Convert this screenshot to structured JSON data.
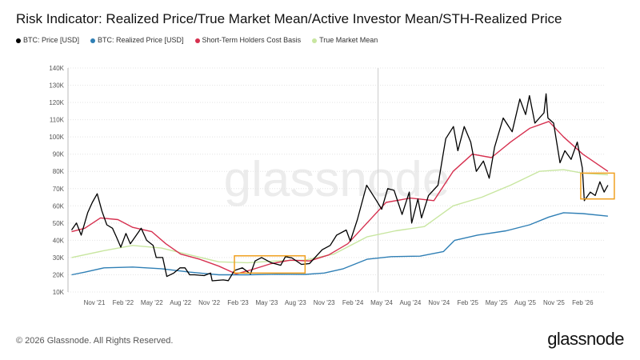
{
  "title": "Risk Indicator: Realized Price/True Market Mean/Active Investor Mean/STH-Realized Price",
  "footer": "© 2026 Glassnode. All Rights Reserved.",
  "brand": "glassnode",
  "watermark": "glassnode",
  "chart_data": {
    "type": "line",
    "title": "Risk Indicator: Realized Price/True Market Mean/Active Investor Mean/STH-Realized Price",
    "y_scale": "linear",
    "ylim": [
      10000,
      140000
    ],
    "y_ticks": [
      "10K",
      "20K",
      "30K",
      "40K",
      "50K",
      "60K",
      "70K",
      "80K",
      "90K",
      "100K",
      "110K",
      "120K",
      "130K",
      "140K"
    ],
    "x_ticks": [
      "Nov '21",
      "Feb '22",
      "May '22",
      "Aug '22",
      "Nov '22",
      "Feb '23",
      "May '23",
      "Aug '23",
      "Nov '23",
      "Feb '24",
      "May '24",
      "Aug '24",
      "Nov '24",
      "Feb '25",
      "May '25",
      "Aug '25",
      "Nov '25",
      "Feb '26"
    ],
    "grid": "horizontal dotted",
    "legend_placement": "top-left",
    "series": [
      {
        "name": "BTC: Price [USD]",
        "color": "#000000",
        "points": [
          [
            "2021-08-20",
            46000
          ],
          [
            "2021-09-05",
            50000
          ],
          [
            "2021-09-20",
            43000
          ],
          [
            "2021-10-10",
            56000
          ],
          [
            "2021-10-25",
            62000
          ],
          [
            "2021-11-10",
            67000
          ],
          [
            "2021-11-25",
            57000
          ],
          [
            "2021-12-10",
            49000
          ],
          [
            "2021-12-28",
            47000
          ],
          [
            "2022-01-10",
            42000
          ],
          [
            "2022-01-24",
            36000
          ],
          [
            "2022-02-10",
            44000
          ],
          [
            "2022-02-24",
            38000
          ],
          [
            "2022-03-28",
            47000
          ],
          [
            "2022-04-15",
            40000
          ],
          [
            "2022-05-05",
            37000
          ],
          [
            "2022-05-15",
            30000
          ],
          [
            "2022-06-05",
            30000
          ],
          [
            "2022-06-18",
            19000
          ],
          [
            "2022-07-10",
            21000
          ],
          [
            "2022-07-30",
            24000
          ],
          [
            "2022-08-15",
            24000
          ],
          [
            "2022-08-30",
            20000
          ],
          [
            "2022-09-15",
            20000
          ],
          [
            "2022-10-15",
            19500
          ],
          [
            "2022-11-05",
            21000
          ],
          [
            "2022-11-10",
            16500
          ],
          [
            "2022-12-15",
            17000
          ],
          [
            "2022-12-31",
            16600
          ],
          [
            "2023-01-20",
            22500
          ],
          [
            "2023-02-15",
            24000
          ],
          [
            "2023-03-10",
            20500
          ],
          [
            "2023-03-25",
            28000
          ],
          [
            "2023-04-15",
            30000
          ],
          [
            "2023-05-15",
            27000
          ],
          [
            "2023-06-15",
            25500
          ],
          [
            "2023-06-30",
            30500
          ],
          [
            "2023-07-20",
            29800
          ],
          [
            "2023-08-20",
            26000
          ],
          [
            "2023-09-15",
            26500
          ],
          [
            "2023-10-25",
            34500
          ],
          [
            "2023-11-20",
            37000
          ],
          [
            "2023-12-10",
            43000
          ],
          [
            "2024-01-10",
            46000
          ],
          [
            "2024-01-23",
            39500
          ],
          [
            "2024-02-15",
            52000
          ],
          [
            "2024-03-14",
            72000
          ],
          [
            "2024-04-15",
            63000
          ],
          [
            "2024-05-01",
            58000
          ],
          [
            "2024-05-20",
            70000
          ],
          [
            "2024-06-10",
            69000
          ],
          [
            "2024-07-05",
            55000
          ],
          [
            "2024-07-28",
            68000
          ],
          [
            "2024-08-05",
            50000
          ],
          [
            "2024-08-25",
            64000
          ],
          [
            "2024-09-06",
            53000
          ],
          [
            "2024-09-28",
            66000
          ],
          [
            "2024-10-28",
            72000
          ],
          [
            "2024-11-12",
            88000
          ],
          [
            "2024-11-22",
            99000
          ],
          [
            "2024-12-16",
            106000
          ],
          [
            "2024-12-30",
            92000
          ],
          [
            "2025-01-20",
            106000
          ],
          [
            "2025-02-10",
            97000
          ],
          [
            "2025-02-28",
            80000
          ],
          [
            "2025-03-20",
            86000
          ],
          [
            "2025-04-08",
            76000
          ],
          [
            "2025-04-25",
            94000
          ],
          [
            "2025-05-22",
            111000
          ],
          [
            "2025-06-20",
            103000
          ],
          [
            "2025-07-14",
            122000
          ],
          [
            "2025-08-02",
            113000
          ],
          [
            "2025-08-14",
            124000
          ],
          [
            "2025-09-01",
            108000
          ],
          [
            "2025-09-30",
            114000
          ],
          [
            "2025-10-06",
            125000
          ],
          [
            "2025-10-12",
            111000
          ],
          [
            "2025-10-30",
            108000
          ],
          [
            "2025-11-20",
            85000
          ],
          [
            "2025-12-05",
            92000
          ],
          [
            "2025-12-25",
            87000
          ],
          [
            "2026-01-14",
            97000
          ],
          [
            "2026-01-30",
            82000
          ],
          [
            "2026-02-06",
            63000
          ],
          [
            "2026-02-25",
            68000
          ],
          [
            "2026-03-10",
            66000
          ],
          [
            "2026-03-25",
            74000
          ],
          [
            "2026-04-08",
            68000
          ],
          [
            "2026-04-20",
            72000
          ]
        ]
      },
      {
        "name": "BTC: Realized Price [USD]",
        "color": "#2f7fb5",
        "points": [
          [
            "2021-08-20",
            20000
          ],
          [
            "2021-10-01",
            21500
          ],
          [
            "2021-12-01",
            24000
          ],
          [
            "2022-03-01",
            24500
          ],
          [
            "2022-06-01",
            23500
          ],
          [
            "2022-09-01",
            21500
          ],
          [
            "2022-12-01",
            20000
          ],
          [
            "2023-03-01",
            20000
          ],
          [
            "2023-06-01",
            20300
          ],
          [
            "2023-09-01",
            20200
          ],
          [
            "2023-11-01",
            21000
          ],
          [
            "2024-01-01",
            23500
          ],
          [
            "2024-03-15",
            29000
          ],
          [
            "2024-06-01",
            30500
          ],
          [
            "2024-09-01",
            30800
          ],
          [
            "2024-11-15",
            33500
          ],
          [
            "2024-12-20",
            40000
          ],
          [
            "2025-03-01",
            43000
          ],
          [
            "2025-06-01",
            45500
          ],
          [
            "2025-08-15",
            49000
          ],
          [
            "2025-10-15",
            53500
          ],
          [
            "2025-12-01",
            56000
          ],
          [
            "2026-02-01",
            55500
          ],
          [
            "2026-04-20",
            54000
          ]
        ]
      },
      {
        "name": "Short-Term Holders Cost Basis",
        "color": "#d6304f",
        "points": [
          [
            "2021-08-20",
            45000
          ],
          [
            "2021-10-01",
            47000
          ],
          [
            "2021-11-20",
            53000
          ],
          [
            "2022-01-15",
            52000
          ],
          [
            "2022-03-01",
            47500
          ],
          [
            "2022-05-01",
            45000
          ],
          [
            "2022-06-15",
            38000
          ],
          [
            "2022-08-01",
            32000
          ],
          [
            "2022-10-01",
            29000
          ],
          [
            "2022-12-01",
            25000
          ],
          [
            "2023-01-25",
            20500
          ],
          [
            "2023-03-15",
            23000
          ],
          [
            "2023-05-15",
            26500
          ],
          [
            "2023-07-15",
            28500
          ],
          [
            "2023-09-15",
            28000
          ],
          [
            "2023-11-15",
            31500
          ],
          [
            "2024-01-15",
            38000
          ],
          [
            "2024-03-15",
            50000
          ],
          [
            "2024-05-15",
            62000
          ],
          [
            "2024-08-01",
            64500
          ],
          [
            "2024-10-15",
            63000
          ],
          [
            "2024-12-15",
            80000
          ],
          [
            "2025-02-15",
            90000
          ],
          [
            "2025-04-15",
            88000
          ],
          [
            "2025-06-15",
            97000
          ],
          [
            "2025-08-15",
            105000
          ],
          [
            "2025-10-15",
            109000
          ],
          [
            "2025-12-01",
            100000
          ],
          [
            "2026-02-01",
            90000
          ],
          [
            "2026-04-20",
            80000
          ]
        ]
      },
      {
        "name": "True Market Mean",
        "color": "#c8e6a0",
        "points": [
          [
            "2021-08-20",
            30000
          ],
          [
            "2021-12-01",
            34000
          ],
          [
            "2022-03-01",
            37000
          ],
          [
            "2022-06-01",
            35500
          ],
          [
            "2022-09-01",
            31500
          ],
          [
            "2022-12-01",
            27500
          ],
          [
            "2023-03-01",
            27000
          ],
          [
            "2023-06-01",
            28000
          ],
          [
            "2023-09-01",
            28500
          ],
          [
            "2023-12-01",
            32000
          ],
          [
            "2024-03-15",
            42000
          ],
          [
            "2024-06-15",
            45500
          ],
          [
            "2024-09-15",
            48000
          ],
          [
            "2024-12-15",
            60000
          ],
          [
            "2025-03-15",
            65000
          ],
          [
            "2025-06-15",
            72000
          ],
          [
            "2025-09-15",
            80000
          ],
          [
            "2025-12-01",
            81000
          ],
          [
            "2026-02-01",
            79000
          ],
          [
            "2026-04-20",
            78000
          ]
        ]
      }
    ],
    "annotations": [
      {
        "type": "box",
        "color": "#f0a020",
        "x": [
          "2023-01-20",
          "2023-09-01"
        ],
        "y": [
          21000,
          31000
        ]
      },
      {
        "type": "box",
        "color": "#f0a020",
        "x": [
          "2026-01-25",
          "2026-05-10"
        ],
        "y": [
          64000,
          79000
        ]
      },
      {
        "type": "vline",
        "color": "#cccccc",
        "x": "2024-04-20"
      }
    ]
  }
}
